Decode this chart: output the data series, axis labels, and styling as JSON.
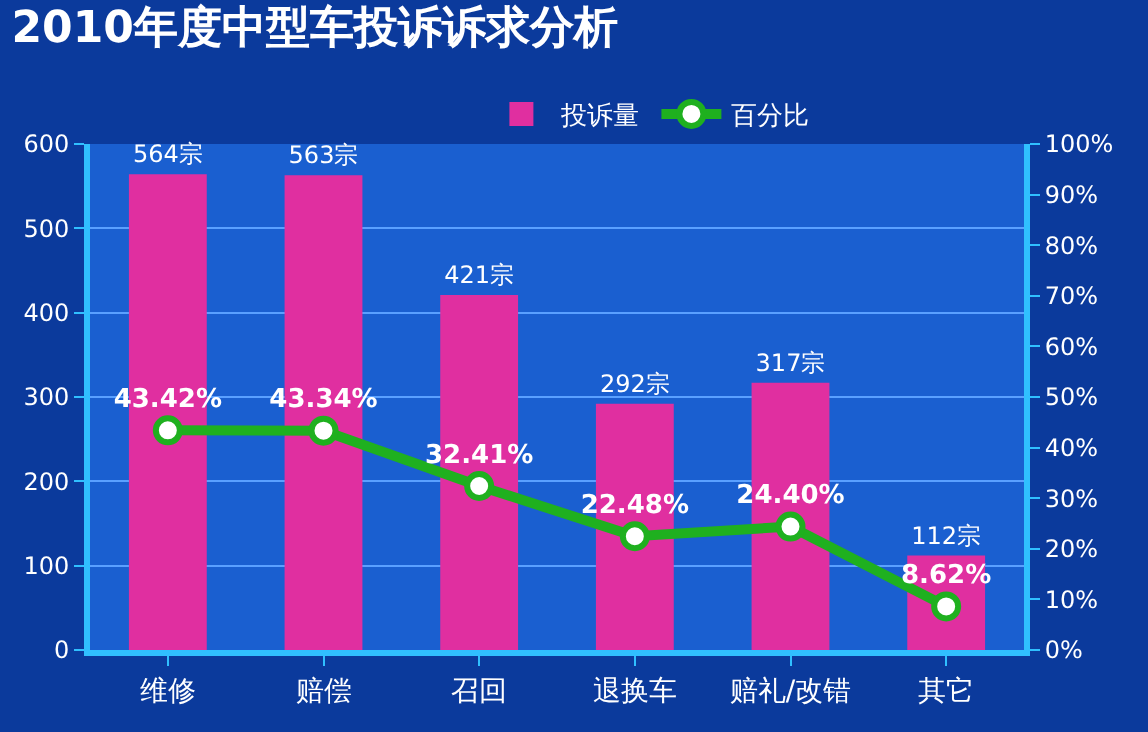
{
  "chart_data": {
    "type": "bar",
    "title": "2010年度中型车投诉诉求分析",
    "categories": [
      "维修",
      "赔偿",
      "召回",
      "退换车",
      "赔礼/改错",
      "其它"
    ],
    "series": [
      {
        "name": "投诉量",
        "color": "#e02fa0",
        "values": [
          564,
          563,
          421,
          292,
          317,
          112
        ],
        "value_labels": [
          "564宗",
          "563宗",
          "421宗",
          "292宗",
          "317宗",
          "112宗"
        ]
      },
      {
        "name": "百分比",
        "type": "line",
        "axis": "y2",
        "color": "#1fb01f",
        "values": [
          43.42,
          43.34,
          32.41,
          22.48,
          24.4,
          8.62
        ],
        "value_labels": [
          "43.42%",
          "43.34%",
          "32.41%",
          "22.48%",
          "24.40%",
          "8.62%"
        ]
      }
    ],
    "ylim": [
      0,
      600
    ],
    "yticks": [
      0,
      100,
      200,
      300,
      400,
      500,
      600
    ],
    "y2lim": [
      0,
      100
    ],
    "y2ticks": [
      {
        "value": 0,
        "label": "0%"
      },
      {
        "value": 10,
        "label": "10%"
      },
      {
        "value": 20,
        "label": "20%"
      },
      {
        "value": 30,
        "label": "30%"
      },
      {
        "value": 40,
        "label": "40%"
      },
      {
        "value": 50,
        "label": "50%"
      },
      {
        "value": 60,
        "label": "60%"
      },
      {
        "value": 70,
        "label": "70%"
      },
      {
        "value": 80,
        "label": "80%"
      },
      {
        "value": 90,
        "label": "90%"
      },
      {
        "value": 100,
        "label": "100%"
      }
    ],
    "grid": "y",
    "legend": "top",
    "marker": "circle",
    "line_style": "solid"
  }
}
